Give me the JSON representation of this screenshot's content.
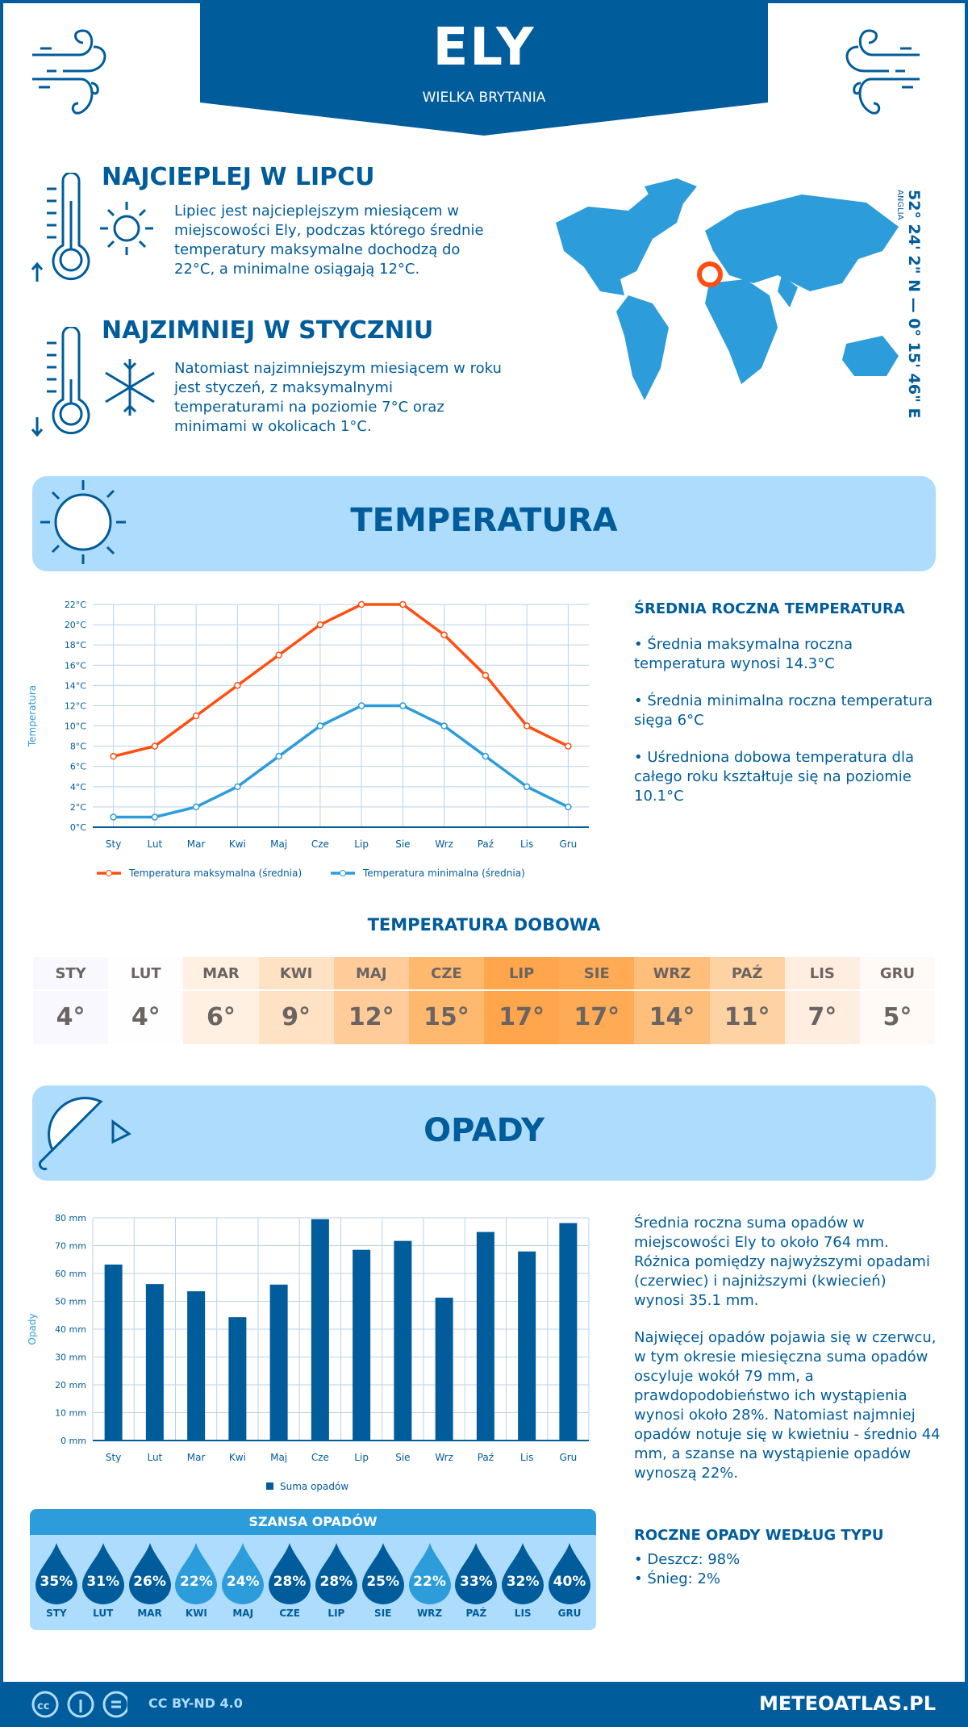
{
  "header": {
    "title": "ELY",
    "subtitle": "WIELKA BRYTANIA"
  },
  "warm": {
    "title": "NAJCIEPLEJ W LIPCU",
    "text": "Lipiec jest najcieplejszym miesiącem w miejscowości Ely, podczas którego średnie temperatury maksymalne dochodzą do 22°C, a minimalne osiągają 12°C."
  },
  "cold": {
    "title": "NAJZIMNIEJ W STYCZNIU",
    "text": "Natomiast najzimniejszym miesiącem w roku jest styczeń, z maksymalnymi temperaturami na poziomie 7°C oraz minimami w okolicach 1°C."
  },
  "location": {
    "coords": "52° 24' 2\" N — 0° 15' 46\" E",
    "region": "ANGLIA"
  },
  "temperature_section": {
    "title": "TEMPERATURA",
    "summary_title": "ŚREDNIA ROCZNA TEMPERATURA",
    "bullets": [
      "• Średnia maksymalna roczna temperatura wynosi 14.3°C",
      "• Średnia minimalna roczna temperatura sięga 6°C",
      "• Uśredniona dobowa temperatura dla całego roku kształtuje się na poziomie 10.1°C"
    ]
  },
  "chart_data": [
    {
      "type": "line",
      "ylabel": "Temperatura",
      "categories": [
        "Sty",
        "Lut",
        "Mar",
        "Kwi",
        "Maj",
        "Cze",
        "Lip",
        "Sie",
        "Wrz",
        "Paź",
        "Lis",
        "Gru"
      ],
      "yticks": [
        "0°C",
        "2°C",
        "4°C",
        "6°C",
        "8°C",
        "10°C",
        "12°C",
        "14°C",
        "16°C",
        "18°C",
        "20°C",
        "22°C"
      ],
      "ylim": [
        0,
        22
      ],
      "grid": true,
      "legend": "bottom",
      "series": [
        {
          "name": "Temperatura maksymalna (średnia)",
          "color": "#ff4e0f",
          "values": [
            7,
            8,
            11,
            14,
            17,
            20,
            22,
            22,
            19,
            15,
            10,
            8
          ]
        },
        {
          "name": "Temperatura minimalna (średnia)",
          "color": "#2d9cdb",
          "values": [
            1,
            1,
            2,
            4,
            7,
            10,
            12,
            12,
            10,
            7,
            4,
            2
          ]
        }
      ]
    },
    {
      "type": "bar",
      "ylabel": "Opady",
      "categories": [
        "Sty",
        "Lut",
        "Mar",
        "Kwi",
        "Maj",
        "Cze",
        "Lip",
        "Sie",
        "Wrz",
        "Paź",
        "Lis",
        "Gru"
      ],
      "yticks": [
        "0 mm",
        "10 mm",
        "20 mm",
        "30 mm",
        "40 mm",
        "50 mm",
        "60 mm",
        "70 mm",
        "80 mm"
      ],
      "ylim": [
        0,
        80
      ],
      "grid": true,
      "legend": "bottom",
      "series": [
        {
          "name": "Suma opadów",
          "color": "#005c9a",
          "values": [
            63.2,
            56.2,
            53.6,
            44.3,
            56,
            79.5,
            68.5,
            71.7,
            51.3,
            74.9,
            67.9,
            78.1
          ]
        }
      ]
    }
  ],
  "daily": {
    "title": "TEMPERATURA DOBOWA",
    "months": [
      {
        "m": "STY",
        "v": "4°",
        "bg": "#f8f8fe"
      },
      {
        "m": "LUT",
        "v": "4°",
        "bg": "#fefefe"
      },
      {
        "m": "MAR",
        "v": "6°",
        "bg": "#fff0e2"
      },
      {
        "m": "KWI",
        "v": "9°",
        "bg": "#ffe1c3"
      },
      {
        "m": "MAJ",
        "v": "12°",
        "bg": "#ffcc99"
      },
      {
        "m": "CZE",
        "v": "15°",
        "bg": "#ffb96f"
      },
      {
        "m": "LIP",
        "v": "17°",
        "bg": "#ffa54b"
      },
      {
        "m": "SIE",
        "v": "17°",
        "bg": "#ffaa55"
      },
      {
        "m": "WRZ",
        "v": "14°",
        "bg": "#ffbe7a"
      },
      {
        "m": "PAŹ",
        "v": "11°",
        "bg": "#ffd2a3"
      },
      {
        "m": "LIS",
        "v": "7°",
        "bg": "#ffede0"
      },
      {
        "m": "GRU",
        "v": "5°",
        "bg": "#fffaf6"
      }
    ]
  },
  "precip_section": {
    "title": "OPADY",
    "p1": "Średnia roczna suma opadów w miejscowości Ely to około 764 mm. Różnica pomiędzy najwyższymi opadami (czerwiec) i najniższymi (kwiecień) wynosi 35.1 mm.",
    "p2": "Najwięcej opadów pojawia się w czerwcu, w tym okresie miesięczna suma opadów oscyluje wokół 79 mm, a prawdopodobieństwo ich wystąpienia wynosi około 28%. Natomiast najmniej opadów notuje się w kwietniu - średnio 44 mm, a szanse na wystąpienie opadów wynoszą 22%.",
    "type_title": "ROCZNE OPADY WEDŁUG TYPU",
    "types": [
      "• Deszcz: 98%",
      "• Śnieg: 2%"
    ]
  },
  "chance": {
    "title": "SZANSA OPADÓW",
    "items": [
      {
        "m": "STY",
        "p": "35%",
        "c": "#005c9a"
      },
      {
        "m": "LUT",
        "p": "31%",
        "c": "#005c9a"
      },
      {
        "m": "MAR",
        "p": "26%",
        "c": "#005c9a"
      },
      {
        "m": "KWI",
        "p": "22%",
        "c": "#2d9cdb"
      },
      {
        "m": "MAJ",
        "p": "24%",
        "c": "#2d9cdb"
      },
      {
        "m": "CZE",
        "p": "28%",
        "c": "#005c9a"
      },
      {
        "m": "LIP",
        "p": "28%",
        "c": "#005c9a"
      },
      {
        "m": "SIE",
        "p": "25%",
        "c": "#005c9a"
      },
      {
        "m": "WRZ",
        "p": "22%",
        "c": "#2d9cdb"
      },
      {
        "m": "PAŹ",
        "p": "33%",
        "c": "#005c9a"
      },
      {
        "m": "LIS",
        "p": "32%",
        "c": "#005c9a"
      },
      {
        "m": "GRU",
        "p": "40%",
        "c": "#005c9a"
      }
    ]
  },
  "footer": {
    "license": "CC BY-ND 4.0",
    "site": "METEOATLAS.PL"
  },
  "colors": {
    "primary": "#005c9a",
    "accent": "#2d9cdb",
    "light": "#aedcfd",
    "max": "#ff4e0f"
  }
}
